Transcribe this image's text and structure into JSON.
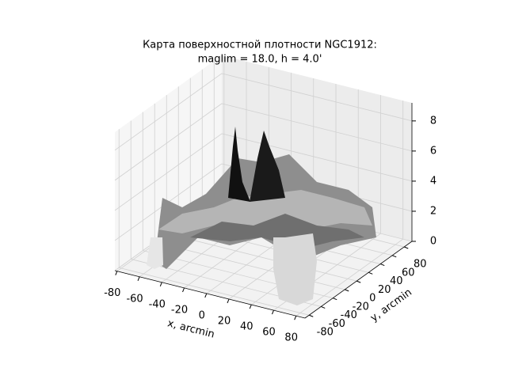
{
  "chart_data": {
    "type": "surface3d",
    "title": [
      "Карта поверхностной плотности NGC1912:",
      "maglim = 18.0, h = 4.0'"
    ],
    "x_label": "x, arcmin",
    "y_label": "y, arcmin",
    "xlim": [
      -82,
      88
    ],
    "ylim": [
      -87,
      93
    ],
    "zlim": [
      0,
      9.2
    ],
    "xticks": [
      -80,
      -60,
      -40,
      -20,
      0,
      20,
      40,
      60,
      80
    ],
    "yticks": [
      -80,
      -60,
      -40,
      -20,
      0,
      20,
      40,
      60,
      80
    ],
    "zticks": [
      0,
      2,
      4,
      6,
      8
    ],
    "grid": true,
    "colormap": "gray"
  }
}
